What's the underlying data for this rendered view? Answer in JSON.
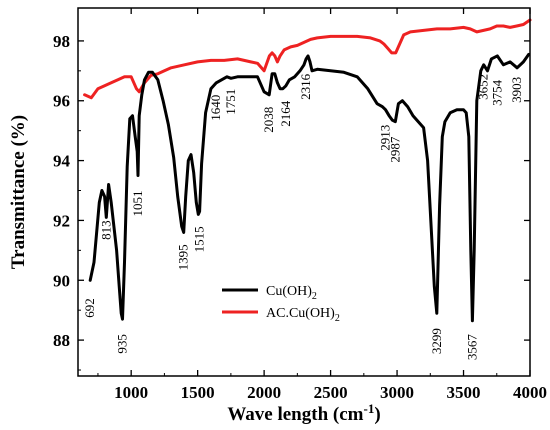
{
  "chart_data": {
    "type": "line",
    "xlabel": "Wave length (cm",
    "xlabel_sup": "-1",
    "xlabel_end": ")",
    "ylabel": "Transmittance (%)",
    "xlim": [
      600,
      4000
    ],
    "ylim": [
      86.8,
      99.1
    ],
    "x_ticks": [
      1000,
      1500,
      2000,
      2500,
      3000,
      3500,
      4000
    ],
    "y_ticks": [
      88,
      90,
      92,
      94,
      96,
      98
    ],
    "grid": false,
    "legend_position": "lower-center",
    "series": [
      {
        "name": "Cu(OH)",
        "name_sub": "2",
        "color": "#000000",
        "x": [
          692,
          720,
          760,
          780,
          800,
          813,
          830,
          850,
          870,
          890,
          910,
          925,
          935,
          950,
          970,
          990,
          1010,
          1030,
          1045,
          1051,
          1060,
          1080,
          1100,
          1130,
          1160,
          1200,
          1240,
          1280,
          1320,
          1350,
          1380,
          1395,
          1410,
          1430,
          1450,
          1470,
          1490,
          1505,
          1515,
          1530,
          1560,
          1600,
          1640,
          1680,
          1720,
          1751,
          1800,
          1850,
          1900,
          1950,
          2000,
          2038,
          2060,
          2080,
          2100,
          2120,
          2140,
          2164,
          2190,
          2230,
          2270,
          2300,
          2316,
          2330,
          2345,
          2360,
          2400,
          2500,
          2600,
          2700,
          2780,
          2850,
          2890,
          2913,
          2940,
          2965,
          2987,
          3010,
          3040,
          3080,
          3120,
          3160,
          3200,
          3230,
          3260,
          3280,
          3299,
          3320,
          3340,
          3360,
          3400,
          3450,
          3500,
          3520,
          3540,
          3555,
          3567,
          3580,
          3600,
          3630,
          3652,
          3680,
          3710,
          3754,
          3800,
          3850,
          3903,
          3950,
          3990
        ],
        "y": [
          90.0,
          90.6,
          92.6,
          93.0,
          92.8,
          92.1,
          93.2,
          92.6,
          91.8,
          91.0,
          89.8,
          88.9,
          88.7,
          90.6,
          93.8,
          95.4,
          95.5,
          94.8,
          94.3,
          93.5,
          95.5,
          96.2,
          96.7,
          96.95,
          96.95,
          96.7,
          96.0,
          95.2,
          94.1,
          92.8,
          91.8,
          91.6,
          92.8,
          94.0,
          94.2,
          93.6,
          92.6,
          92.2,
          92.3,
          93.9,
          95.6,
          96.4,
          96.6,
          96.7,
          96.8,
          96.75,
          96.8,
          96.8,
          96.8,
          96.8,
          96.3,
          96.2,
          96.9,
          96.9,
          96.6,
          96.4,
          96.4,
          96.5,
          96.7,
          96.8,
          97.0,
          97.2,
          97.4,
          97.5,
          97.3,
          97.0,
          97.05,
          97.0,
          96.95,
          96.8,
          96.4,
          95.9,
          95.8,
          95.7,
          95.5,
          95.35,
          95.3,
          95.9,
          96.0,
          95.8,
          95.5,
          95.3,
          95.1,
          94.0,
          91.5,
          89.8,
          88.9,
          92.5,
          94.8,
          95.3,
          95.6,
          95.7,
          95.7,
          95.6,
          94.8,
          91.0,
          88.65,
          91.0,
          96.0,
          97.0,
          97.2,
          97.0,
          97.4,
          97.5,
          97.2,
          97.3,
          97.1,
          97.3,
          97.55
        ]
      },
      {
        "name": "AC.Cu(OH)",
        "name_sub": "2",
        "color": "#ee2222",
        "x": [
          650,
          700,
          750,
          800,
          850,
          900,
          950,
          1000,
          1040,
          1060,
          1100,
          1150,
          1200,
          1250,
          1300,
          1400,
          1500,
          1600,
          1700,
          1800,
          1900,
          1950,
          2000,
          2040,
          2060,
          2080,
          2100,
          2120,
          2150,
          2200,
          2250,
          2300,
          2350,
          2400,
          2500,
          2600,
          2700,
          2800,
          2870,
          2900,
          2930,
          2960,
          2990,
          3020,
          3050,
          3100,
          3200,
          3300,
          3400,
          3500,
          3550,
          3600,
          3650,
          3700,
          3750,
          3800,
          3850,
          3900,
          3950,
          4000
        ],
        "y": [
          96.2,
          96.1,
          96.4,
          96.5,
          96.6,
          96.7,
          96.8,
          96.8,
          96.4,
          96.3,
          96.6,
          96.85,
          96.9,
          97.0,
          97.1,
          97.2,
          97.3,
          97.35,
          97.35,
          97.4,
          97.3,
          97.25,
          97.0,
          97.5,
          97.6,
          97.5,
          97.3,
          97.5,
          97.7,
          97.8,
          97.85,
          97.95,
          98.05,
          98.1,
          98.15,
          98.15,
          98.15,
          98.1,
          98.0,
          97.9,
          97.75,
          97.6,
          97.6,
          97.9,
          98.2,
          98.3,
          98.35,
          98.4,
          98.4,
          98.45,
          98.4,
          98.3,
          98.35,
          98.4,
          98.5,
          98.5,
          98.45,
          98.5,
          98.55,
          98.7
        ]
      }
    ],
    "annotations": [
      {
        "text": "692",
        "x": 692,
        "y": 89.4
      },
      {
        "text": "813",
        "x": 813,
        "y": 92.0
      },
      {
        "text": "935",
        "x": 935,
        "y": 88.2
      },
      {
        "text": "1051",
        "x": 1051,
        "y": 93.0
      },
      {
        "text": "1395",
        "x": 1395,
        "y": 91.2
      },
      {
        "text": "1515",
        "x": 1515,
        "y": 91.8
      },
      {
        "text": "1640",
        "x": 1640,
        "y": 96.2
      },
      {
        "text": "1751",
        "x": 1751,
        "y": 96.4
      },
      {
        "text": "2038",
        "x": 2038,
        "y": 95.8
      },
      {
        "text": "2164",
        "x": 2164,
        "y": 96.0
      },
      {
        "text": "2316",
        "x": 2316,
        "y": 96.9
      },
      {
        "text": "2913",
        "x": 2913,
        "y": 95.2
      },
      {
        "text": "2987",
        "x": 2987,
        "y": 94.8
      },
      {
        "text": "3299",
        "x": 3299,
        "y": 88.4
      },
      {
        "text": "3567",
        "x": 3567,
        "y": 88.2
      },
      {
        "text": "3652",
        "x": 3652,
        "y": 96.9
      },
      {
        "text": "3754",
        "x": 3754,
        "y": 96.7
      },
      {
        "text": "3903",
        "x": 3903,
        "y": 96.8
      }
    ]
  }
}
